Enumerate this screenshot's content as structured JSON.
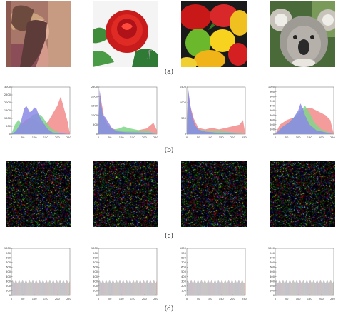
{
  "figure": {
    "row_labels": [
      "(a)",
      "(b)",
      "(c)",
      "(d)"
    ],
    "images": [
      {
        "subject": "woman in a feathered hat",
        "icon": "portrait-photo"
      },
      {
        "subject": "red rose",
        "icon": "rose-photo"
      },
      {
        "subject": "bell peppers",
        "icon": "peppers-photo"
      },
      {
        "subject": "koala",
        "icon": "koala-photo"
      }
    ]
  },
  "chart_data": [
    {
      "type": "area",
      "role": "original-histogram",
      "image": "portrait",
      "xlim": [
        0,
        255
      ],
      "ylim": [
        0,
        3000
      ],
      "x_ticks": [
        "0",
        "50",
        "100",
        "150",
        "200",
        "250"
      ],
      "y_ticks": [
        "0",
        "500",
        "1000",
        "1500",
        "2000",
        "2500",
        "3000"
      ],
      "channels": {
        "red": {
          "color": "#f28a8a",
          "x": [
            0,
            20,
            40,
            60,
            80,
            100,
            120,
            140,
            160,
            180,
            200,
            215,
            230,
            245,
            255
          ],
          "y": [
            0,
            150,
            550,
            900,
            1000,
            950,
            700,
            600,
            800,
            1300,
            1800,
            2400,
            1600,
            800,
            0
          ]
        },
        "green": {
          "color": "#7fd68a",
          "x": [
            0,
            15,
            30,
            50,
            70,
            90,
            110,
            130,
            150,
            170,
            190,
            210,
            230,
            255
          ],
          "y": [
            0,
            600,
            900,
            600,
            800,
            1200,
            1300,
            1200,
            800,
            400,
            200,
            100,
            0,
            0
          ]
        },
        "blue": {
          "color": "#8a8ae6",
          "x": [
            0,
            20,
            40,
            55,
            65,
            80,
            90,
            100,
            110,
            120,
            140,
            160,
            180,
            255
          ],
          "y": [
            0,
            200,
            700,
            1600,
            1800,
            1400,
            1500,
            1700,
            1600,
            1200,
            700,
            300,
            100,
            0
          ]
        }
      }
    },
    {
      "type": "area",
      "role": "original-histogram",
      "image": "rose",
      "xlim": [
        0,
        255
      ],
      "ylim": [
        0,
        2500
      ],
      "x_ticks": [
        "0",
        "50",
        "100",
        "150",
        "200",
        "250"
      ],
      "y_ticks": [
        "0",
        "500",
        "1000",
        "1500",
        "2000",
        "2500"
      ],
      "channels": {
        "red": {
          "color": "#f28a8a",
          "x": [
            0,
            5,
            12,
            25,
            40,
            60,
            90,
            130,
            170,
            210,
            240,
            255
          ],
          "y": [
            0,
            2300,
            1800,
            900,
            500,
            300,
            200,
            150,
            200,
            300,
            600,
            200
          ]
        },
        "green": {
          "color": "#7fd68a",
          "x": [
            0,
            5,
            15,
            30,
            50,
            70,
            90,
            110,
            140,
            180,
            220,
            255
          ],
          "y": [
            0,
            2000,
            1200,
            600,
            300,
            250,
            300,
            400,
            300,
            200,
            150,
            0
          ]
        },
        "blue": {
          "color": "#8a8ae6",
          "x": [
            0,
            5,
            12,
            20,
            30,
            45,
            60,
            80,
            120,
            200,
            255
          ],
          "y": [
            0,
            2400,
            1600,
            1000,
            900,
            600,
            300,
            150,
            100,
            80,
            0
          ]
        }
      }
    },
    {
      "type": "area",
      "role": "original-histogram",
      "image": "peppers",
      "xlim": [
        0,
        255
      ],
      "ylim": [
        0,
        1500
      ],
      "x_ticks": [
        "0",
        "50",
        "100",
        "150",
        "200",
        "250"
      ],
      "y_ticks": [
        "0",
        "500",
        "1000",
        "1500"
      ],
      "channels": {
        "red": {
          "color": "#f28a8a",
          "x": [
            0,
            5,
            15,
            30,
            50,
            80,
            110,
            140,
            170,
            200,
            230,
            245,
            255
          ],
          "y": [
            0,
            1400,
            900,
            500,
            200,
            150,
            200,
            150,
            200,
            250,
            300,
            450,
            0
          ]
        },
        "green": {
          "color": "#7fd68a",
          "x": [
            0,
            5,
            15,
            30,
            50,
            80,
            120,
            170,
            220,
            255
          ],
          "y": [
            0,
            1200,
            600,
            300,
            150,
            120,
            100,
            80,
            40,
            0
          ]
        },
        "blue": {
          "color": "#8a8ae6",
          "x": [
            0,
            5,
            12,
            20,
            35,
            50,
            80,
            150,
            255
          ],
          "y": [
            0,
            1500,
            1100,
            700,
            300,
            150,
            80,
            30,
            0
          ]
        }
      }
    },
    {
      "type": "area",
      "role": "original-histogram",
      "image": "koala",
      "xlim": [
        0,
        255
      ],
      "ylim": [
        0,
        1000
      ],
      "x_ticks": [
        "0",
        "50",
        "100",
        "150",
        "200",
        "250"
      ],
      "y_ticks": [
        "0",
        "100",
        "200",
        "300",
        "400",
        "500",
        "600",
        "700",
        "800",
        "900",
        "1000"
      ],
      "channels": {
        "red": {
          "color": "#f28a8a",
          "x": [
            0,
            20,
            50,
            80,
            100,
            120,
            140,
            160,
            180,
            200,
            220,
            240,
            255
          ],
          "y": [
            0,
            200,
            300,
            350,
            400,
            500,
            550,
            550,
            500,
            450,
            400,
            300,
            0
          ]
        },
        "green": {
          "color": "#7fd68a",
          "x": [
            0,
            30,
            60,
            90,
            110,
            130,
            150,
            170,
            200,
            255
          ],
          "y": [
            0,
            150,
            250,
            400,
            500,
            600,
            450,
            250,
            100,
            0
          ]
        },
        "blue": {
          "color": "#8a8ae6",
          "x": [
            0,
            30,
            60,
            80,
            100,
            110,
            120,
            130,
            150,
            180,
            255
          ],
          "y": [
            0,
            150,
            250,
            350,
            500,
            650,
            550,
            400,
            200,
            80,
            0
          ]
        }
      }
    },
    {
      "type": "bar",
      "role": "encrypted-histogram",
      "image": "portrait",
      "xlim": [
        0,
        255
      ],
      "ylim": [
        0,
        1000
      ],
      "level": 300,
      "x_ticks": [
        "0",
        "50",
        "100",
        "150",
        "200",
        "250"
      ],
      "y_ticks": [
        "0",
        "100",
        "200",
        "300",
        "400",
        "500",
        "600",
        "700",
        "800",
        "900",
        "1000"
      ]
    },
    {
      "type": "bar",
      "role": "encrypted-histogram",
      "image": "rose",
      "xlim": [
        0,
        255
      ],
      "ylim": [
        0,
        1000
      ],
      "level": 300,
      "x_ticks": [
        "0",
        "50",
        "100",
        "150",
        "200",
        "250"
      ],
      "y_ticks": [
        "0",
        "100",
        "200",
        "300",
        "400",
        "500",
        "600",
        "700",
        "800",
        "900",
        "1000"
      ]
    },
    {
      "type": "bar",
      "role": "encrypted-histogram",
      "image": "peppers",
      "xlim": [
        0,
        255
      ],
      "ylim": [
        0,
        1000
      ],
      "level": 300,
      "x_ticks": [
        "0",
        "50",
        "100",
        "150",
        "200",
        "250"
      ],
      "y_ticks": [
        "0",
        "100",
        "200",
        "300",
        "400",
        "500",
        "600",
        "700",
        "800",
        "900",
        "1000"
      ]
    },
    {
      "type": "bar",
      "role": "encrypted-histogram",
      "image": "koala",
      "xlim": [
        0,
        255
      ],
      "ylim": [
        0,
        1000
      ],
      "level": 300,
      "x_ticks": [
        "0",
        "50",
        "100",
        "150",
        "200",
        "250"
      ],
      "y_ticks": [
        "0",
        "100",
        "200",
        "300",
        "400",
        "500",
        "600",
        "700",
        "800",
        "900",
        "1000"
      ]
    }
  ]
}
